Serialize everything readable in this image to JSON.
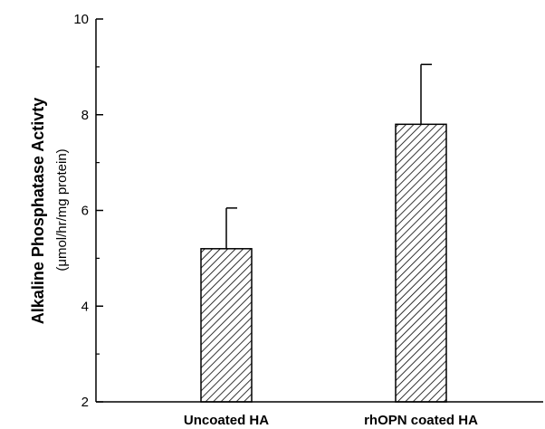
{
  "chart_data": {
    "type": "bar",
    "categories": [
      "Uncoated HA",
      "rhOPN coated HA"
    ],
    "series": [
      {
        "values": [
          5.2,
          7.8
        ],
        "errors": [
          0.85,
          1.25
        ]
      }
    ],
    "ylabel": "Alkaline Phosphatase Activty",
    "ylabel_units": "(μmol/hr/mg protein)",
    "ylim": [
      2,
      10
    ],
    "yticks": [
      2,
      4,
      6,
      8,
      10
    ],
    "ytick_labels": [
      "2",
      "4",
      "6",
      "8",
      "10"
    ],
    "bar_fill": "hatched",
    "grid": false
  }
}
